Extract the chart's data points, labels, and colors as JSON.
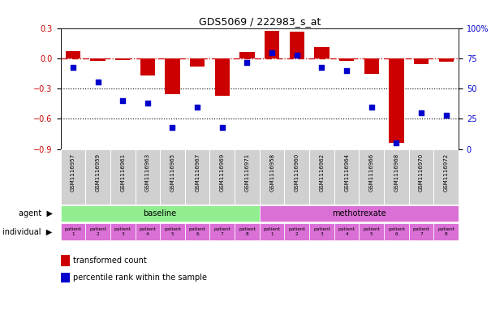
{
  "title": "GDS5069 / 222983_s_at",
  "gsm_labels": [
    "GSM1116957",
    "GSM1116959",
    "GSM1116961",
    "GSM1116963",
    "GSM1116965",
    "GSM1116967",
    "GSM1116969",
    "GSM1116971",
    "GSM1116958",
    "GSM1116960",
    "GSM1116962",
    "GSM1116964",
    "GSM1116966",
    "GSM1116968",
    "GSM1116970",
    "GSM1116972"
  ],
  "transformed_count": [
    0.08,
    -0.02,
    -0.01,
    -0.17,
    -0.35,
    -0.08,
    -0.37,
    0.07,
    0.28,
    0.27,
    0.12,
    -0.02,
    -0.15,
    -0.84,
    -0.05,
    -0.03
  ],
  "percentile_rank": [
    68,
    56,
    40,
    38,
    18,
    35,
    18,
    72,
    80,
    78,
    68,
    65,
    35,
    5,
    30,
    28
  ],
  "bar_color": "#cc0000",
  "dot_color": "#0000cc",
  "ylim_left": [
    -0.9,
    0.3
  ],
  "ylim_right": [
    0,
    100
  ],
  "yticks_left": [
    -0.9,
    -0.6,
    -0.3,
    0.0,
    0.3
  ],
  "yticks_right": [
    0,
    25,
    50,
    75,
    100
  ],
  "hline_y": 0.0,
  "hline_color": "#cc0000",
  "dotted_lines": [
    -0.3,
    -0.6
  ],
  "dotted_color": "black",
  "baseline_label": "baseline",
  "methotrexate_label": "methotrexate",
  "baseline_color": "#90ee90",
  "methotrexate_color": "#da70d6",
  "individual_cell_color": "#da70d6",
  "agent_label": "agent",
  "individual_label": "individual",
  "n_baseline": 8,
  "n_methotrexate": 8,
  "legend_bar_label": "transformed count",
  "legend_dot_label": "percentile rank within the sample",
  "gsm_cell_color": "#d0d0d0",
  "plot_bg": "white"
}
